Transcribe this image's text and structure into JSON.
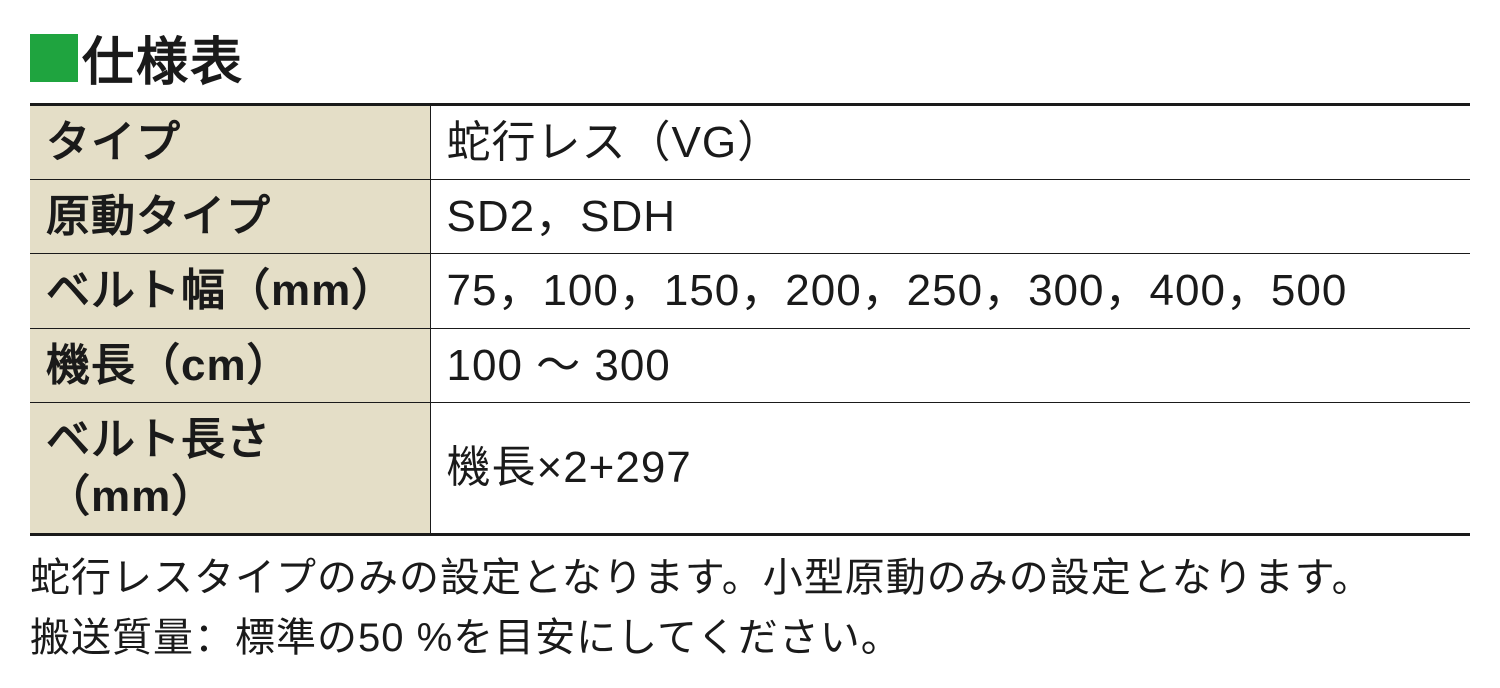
{
  "title": {
    "marker_color": "#1fa43f",
    "text": "仕様表"
  },
  "table": {
    "label_bg_color": "#e4dec7",
    "rows": [
      {
        "label": "タイプ",
        "value": "蛇行レス（VG）"
      },
      {
        "label": "原動タイプ",
        "value": "SD2，SDH"
      },
      {
        "label": "ベルト幅（mm）",
        "value": "75，100，150，200，250，300，400，500"
      },
      {
        "label": "機長（cm）",
        "value": "100 ～ 300"
      },
      {
        "label": "ベルト長さ（mm）",
        "value": "機長×2+297"
      }
    ]
  },
  "notes": {
    "line1": "蛇行レスタイプのみの設定となります。小型原動のみの設定となります。",
    "line2": "搬送質量：標準の50 %を目安にしてください。"
  }
}
